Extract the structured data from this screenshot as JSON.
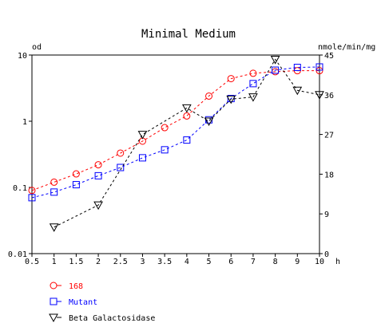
{
  "chart_data": {
    "type": "line",
    "title": "Minimal Medium",
    "xlabel": "h",
    "ylabel_left": "od",
    "ylabel_right": "nmole/min/mg",
    "x_ticks": [
      0.5,
      1,
      1.5,
      2,
      2.5,
      3,
      3.5,
      4,
      5,
      6,
      7,
      8,
      9,
      10
    ],
    "x_tick_labels": [
      "0.5",
      "1",
      "1.5",
      "2",
      "2.5",
      "3",
      "3.5",
      "4",
      "5",
      "6",
      "7",
      "8",
      "9",
      "10"
    ],
    "xlim": [
      0.5,
      10
    ],
    "y_left_scale": "log",
    "y_left_ticks": [
      0.01,
      0.1,
      1,
      10
    ],
    "y_left_tick_labels": [
      "0.01",
      "0.1",
      "1",
      "10"
    ],
    "ylim_left": [
      0.01,
      10
    ],
    "y_right_ticks": [
      0,
      9,
      18,
      27,
      36,
      45
    ],
    "y_right_tick_labels": [
      "0",
      "9",
      "18",
      "27",
      "36",
      "45"
    ],
    "ylim_right": [
      0,
      45
    ],
    "legend_position": "bottom-left",
    "series": [
      {
        "name": "168",
        "axis": "left",
        "color": "#ff0000",
        "marker": "circle",
        "x": [
          0.5,
          1,
          1.5,
          2,
          2.5,
          3,
          3.5,
          4,
          5,
          6,
          7,
          8,
          9,
          10
        ],
        "values": [
          0.09,
          0.12,
          0.16,
          0.22,
          0.33,
          0.5,
          0.8,
          1.2,
          2.4,
          4.4,
          5.3,
          5.6,
          5.8,
          5.8
        ]
      },
      {
        "name": "Mutant",
        "axis": "left",
        "color": "#0000ff",
        "marker": "square",
        "x": [
          0.5,
          1,
          1.5,
          2,
          2.5,
          3,
          3.5,
          4,
          5,
          6,
          7,
          8,
          9,
          10
        ],
        "values": [
          0.07,
          0.085,
          0.11,
          0.15,
          0.2,
          0.28,
          0.37,
          0.52,
          1.05,
          2.2,
          3.7,
          5.9,
          6.5,
          6.6
        ]
      },
      {
        "name": "Beta Galactosidase",
        "axis": "right",
        "color": "#000000",
        "marker": "triangle-down",
        "x": [
          1,
          2,
          3,
          4,
          5,
          6,
          7,
          8,
          9,
          10
        ],
        "values": [
          6,
          11,
          27,
          33,
          30,
          35,
          35.5,
          44,
          37,
          36
        ]
      }
    ]
  }
}
